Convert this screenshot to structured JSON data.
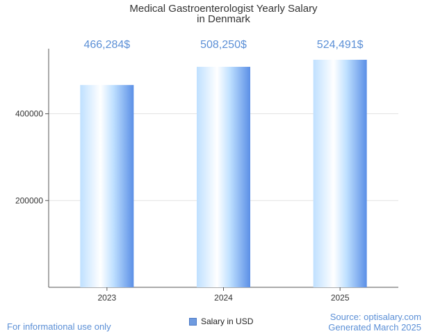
{
  "chart_data": {
    "type": "bar",
    "title": "Medical Gastroenterologist Yearly Salary",
    "subtitle": "in Denmark",
    "categories": [
      "2023",
      "2024",
      "2025"
    ],
    "series": [
      {
        "name": "Salary in USD",
        "values": [
          466284,
          508250,
          524491
        ]
      }
    ],
    "data_labels": [
      "466,284$",
      "508,250$",
      "524,491$"
    ],
    "y_ticks": [
      200000,
      400000
    ],
    "y_tick_labels": [
      "200000",
      "400000"
    ],
    "ylim": [
      0,
      550000
    ],
    "xlabel": "",
    "ylabel": "",
    "grid": true,
    "legend_position": "bottom"
  },
  "footer": {
    "disclaimer": "For informational use only",
    "source": "Source: optisalary.com",
    "generated": "Generated March 2025"
  },
  "colors": {
    "bar_light": "#ffffff",
    "bar_mid": "#bfe0ff",
    "bar_dark": "#5b8fe6",
    "label": "#5b8fd6",
    "axis": "#555555",
    "grid": "#e2e2e2"
  }
}
